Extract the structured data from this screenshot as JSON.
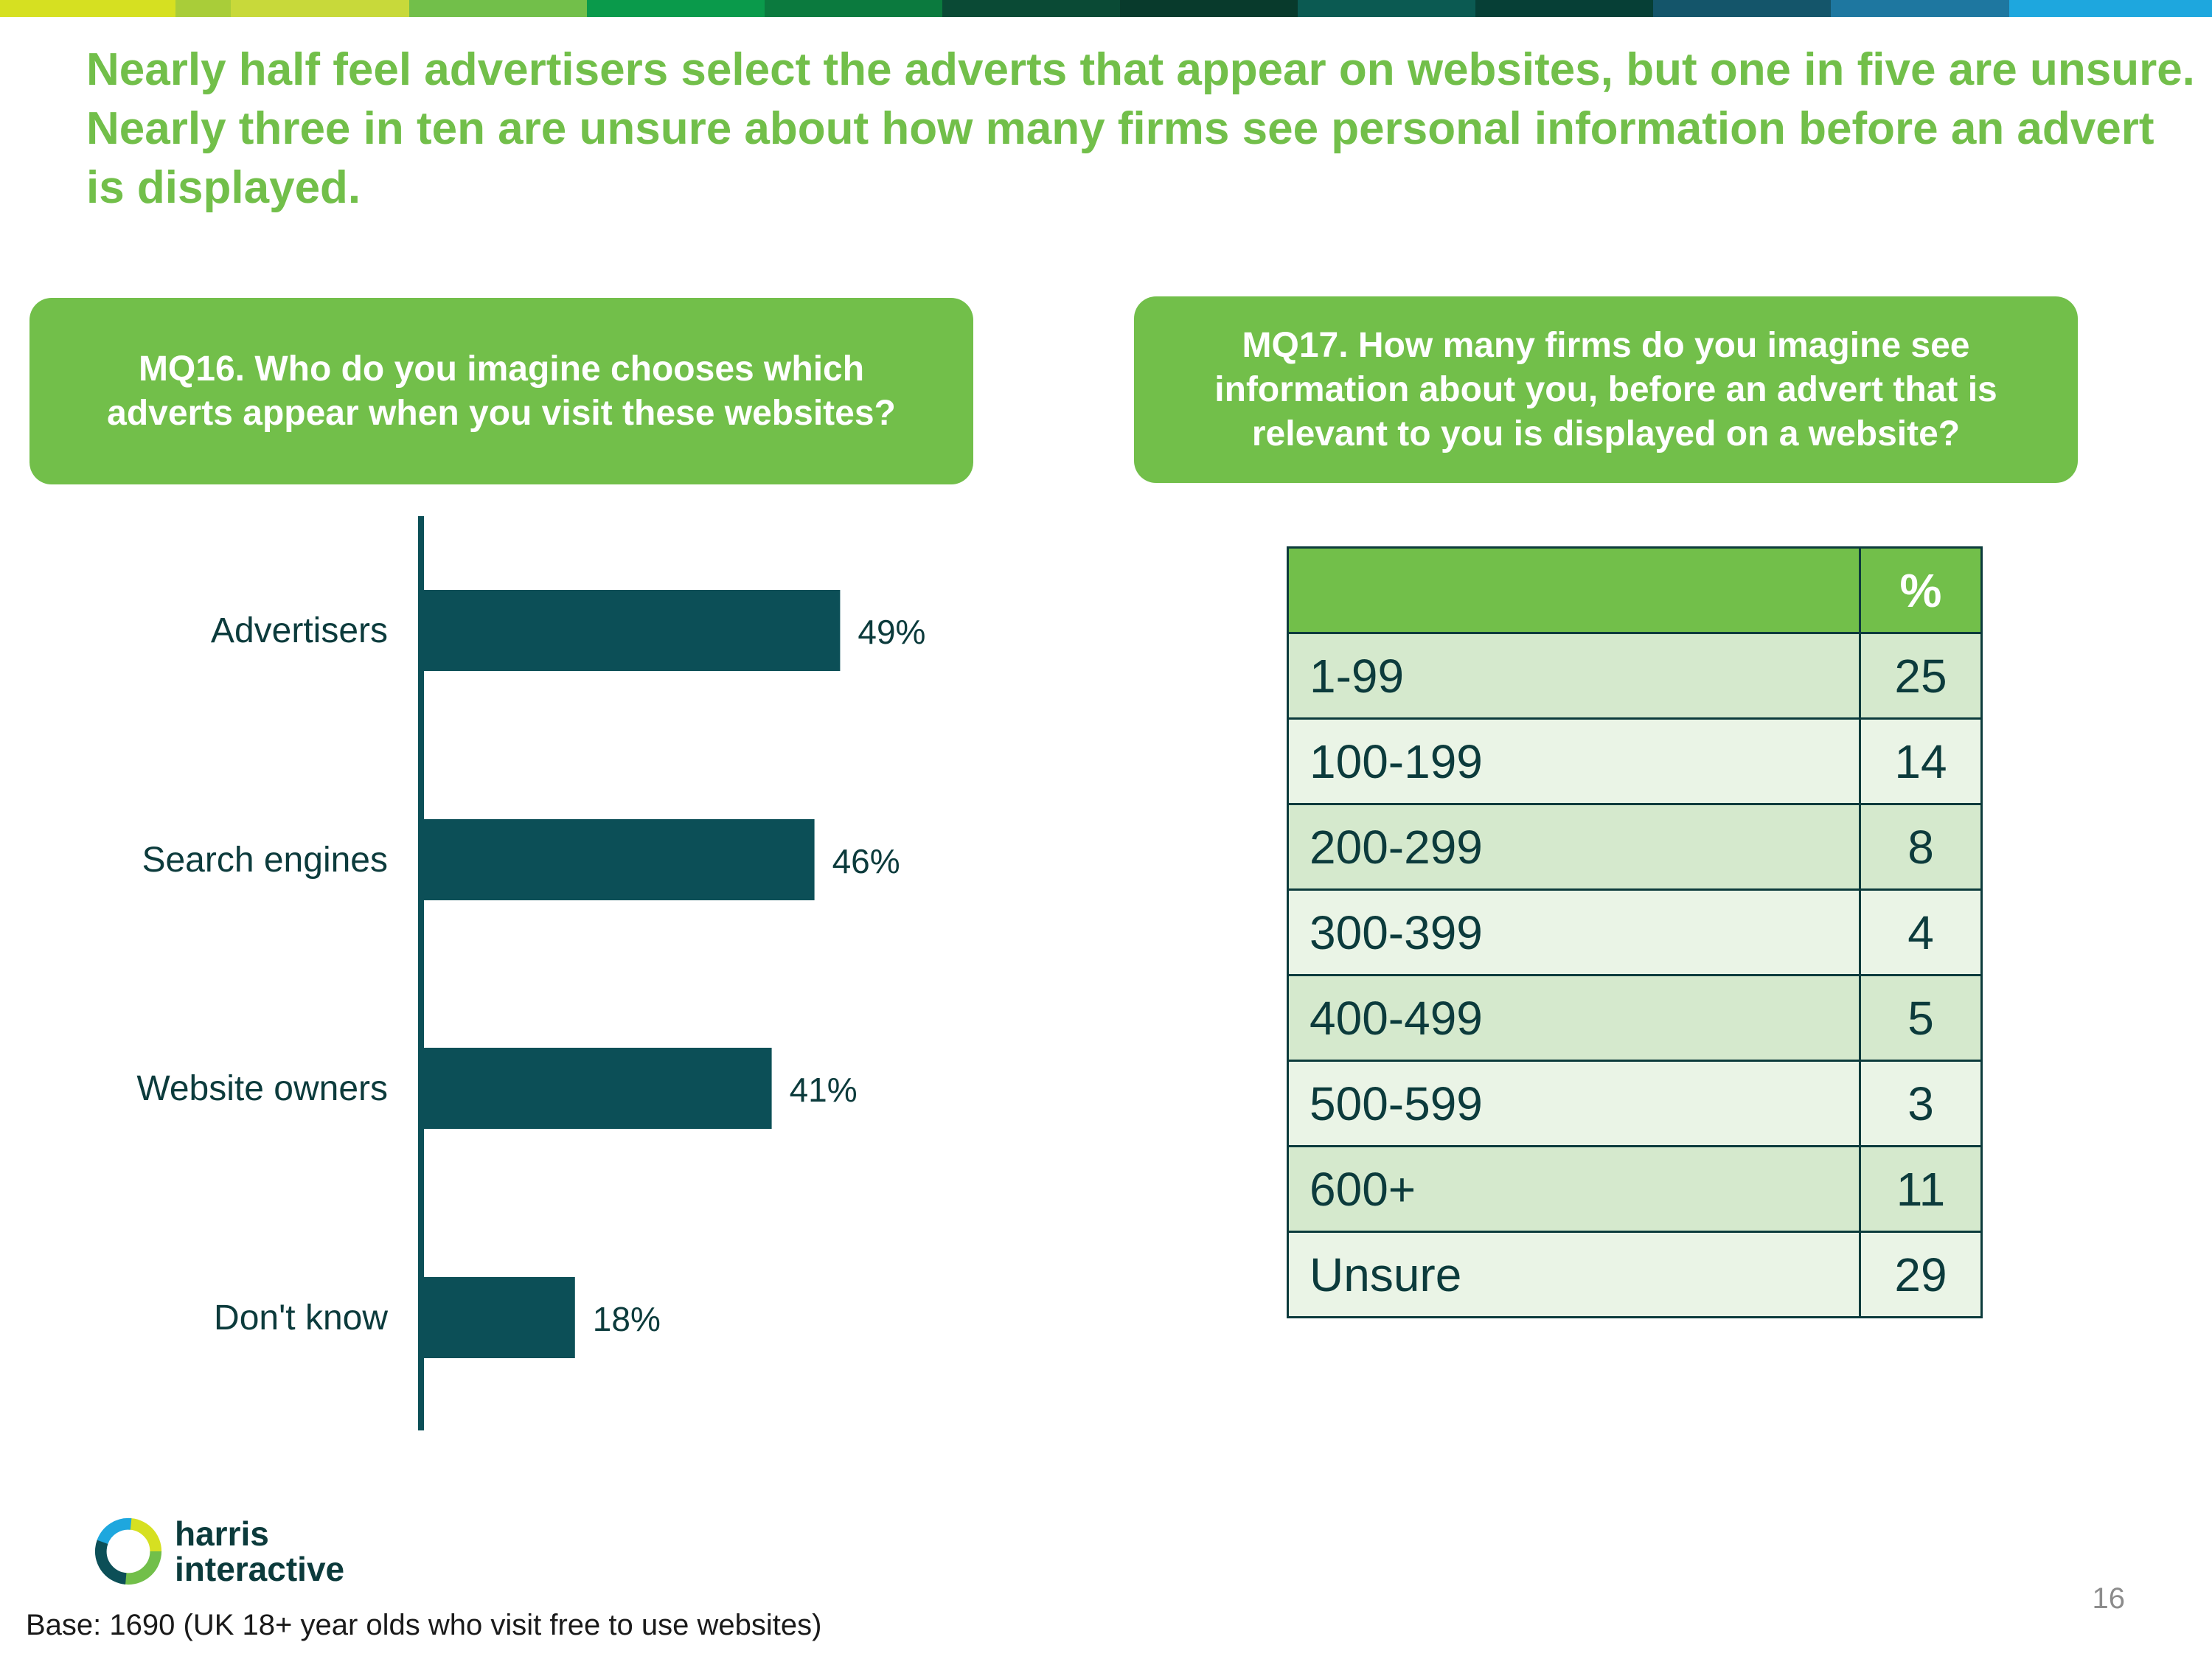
{
  "headline": "Nearly half feel advertisers select the adverts that appear on websites, but one in five are unsure. Nearly three in ten are unsure about how many firms see personal information before an advert is displayed.",
  "colors": {
    "accent_green": "#72bf4a",
    "dark_teal": "#0c4f57",
    "text_dark": "#0c3b3c",
    "row_alt_1": "#d5e9cd",
    "row_alt_2": "#eaf4e6",
    "stripe": [
      "#d6e021",
      "#a9cd39",
      "#c8d93a",
      "#72bf4a",
      "#0a9a4b",
      "#0b7a3e",
      "#0a4a35",
      "#083a2c",
      "#0b5a52",
      "#063f36",
      "#14556a",
      "#1e77a0",
      "#1ea7de"
    ]
  },
  "mq16": {
    "question": "MQ16. Who do you imagine chooses which adverts appear when you visit these websites?"
  },
  "mq17": {
    "question": "MQ17. How many firms do you imagine see information about you, before an advert that is relevant to you is displayed on a website?"
  },
  "chart_data": [
    {
      "type": "bar",
      "orientation": "horizontal",
      "title": "MQ16. Who do you imagine chooses which adverts appear when you visit these websites?",
      "categories": [
        "Advertisers",
        "Search engines",
        "Website owners",
        "Don't know"
      ],
      "values": [
        49,
        46,
        41,
        18
      ],
      "value_labels": [
        "49%",
        "46%",
        "41%",
        "18%"
      ],
      "unit": "%",
      "xlim": [
        0,
        100
      ],
      "grid": false,
      "legend": "none"
    },
    {
      "type": "table",
      "title": "MQ17. How many firms do you imagine see information about you, before an advert that is relevant to you is displayed on a website?",
      "columns": [
        "",
        "%"
      ],
      "rows": [
        {
          "label": "1-99",
          "value": "25"
        },
        {
          "label": "100-199",
          "value": "14"
        },
        {
          "label": "200-299",
          "value": "8"
        },
        {
          "label": "300-399",
          "value": "4"
        },
        {
          "label": "400-499",
          "value": "5"
        },
        {
          "label": "500-599",
          "value": "3"
        },
        {
          "label": "600+",
          "value": "11"
        },
        {
          "label": "Unsure",
          "value": "29"
        }
      ]
    }
  ],
  "logo": {
    "icon": "harris-interactive-ring-icon",
    "line1": "harris",
    "line2": "interactive"
  },
  "footer": {
    "base_note": "Base: 1690 (UK 18+ year olds who visit free to use websites)",
    "page_number": "16"
  }
}
